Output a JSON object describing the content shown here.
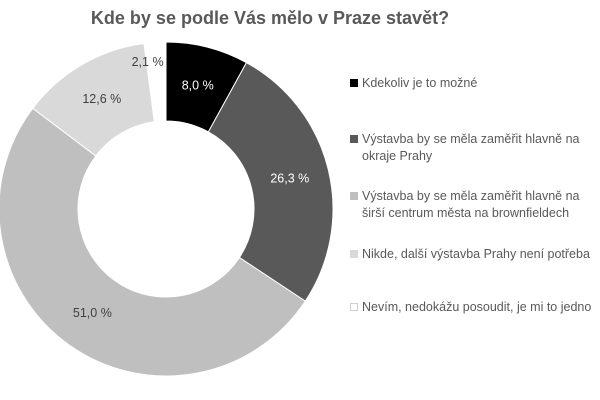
{
  "chart_data": {
    "type": "pie",
    "donut": true,
    "title": "Kde by se podle Vás mělo v Praze stavět?",
    "start_angle_deg": 0,
    "direction": "clockwise",
    "legend_position": "right",
    "categories": [
      "Kdekoliv je to možné",
      "Výstavba by se měla zaměřit hlavně na okraje Prahy",
      "Výstavba by se měla zaměřit hlavně na širší centrum města na brownfieldech",
      "Nikde, další výstavba Prahy není potřeba",
      "Nevím, nedokážu posoudit, je mi to jedno"
    ],
    "legend_lines": [
      [
        "Kdekoliv je to možné"
      ],
      [
        "Výstavba by se měla zaměřit hlavně na",
        "okraje Prahy"
      ],
      [
        "Výstavba by se měla zaměřit hlavně na",
        "širší centrum města na brownfieldech"
      ],
      [
        "Nikde, další výstavba Prahy není potřeba"
      ],
      [
        "Nevím, nedokážu posoudit, je mi to jedno"
      ]
    ],
    "values": [
      8.0,
      26.3,
      51.0,
      12.6,
      2.1
    ],
    "labels": [
      "8,0 %",
      "26,3 %",
      "51,0 %",
      "12,6 %",
      "2,1 %"
    ],
    "colors": [
      "#000000",
      "#595959",
      "#bfbfbf",
      "#d9d9d9",
      "#ffffff"
    ],
    "label_colors": [
      "#ffffff",
      "#ffffff",
      "#404040",
      "#404040",
      "#404040"
    ]
  }
}
